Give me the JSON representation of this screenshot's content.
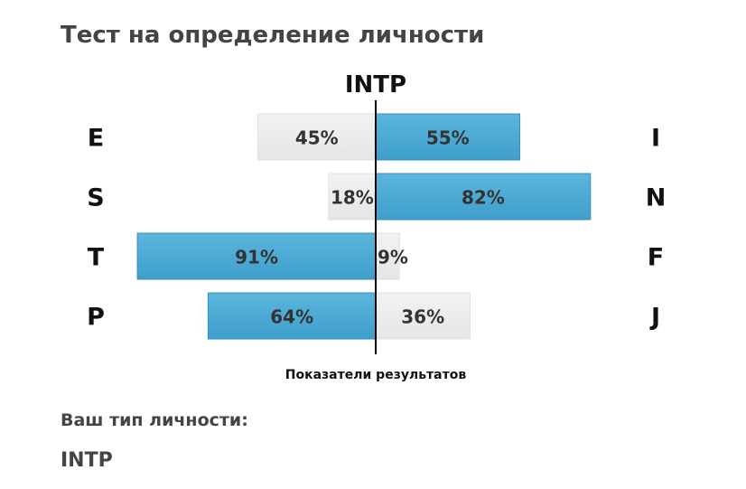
{
  "page": {
    "title": "Тест на определение личности",
    "result_label": "Ваш тип личности:",
    "result_value": "INTP"
  },
  "chart_data": {
    "type": "bar",
    "orientation": "diverging-horizontal",
    "title": "INTP",
    "xlabel": "Показатели результатов",
    "xlim": [
      -100,
      100
    ],
    "rows": [
      {
        "left_label": "E",
        "right_label": "I",
        "left_value": 45,
        "right_value": 55,
        "left_text": "45%",
        "right_text": "55%",
        "dominant": "right"
      },
      {
        "left_label": "S",
        "right_label": "N",
        "left_value": 18,
        "right_value": 82,
        "left_text": "18%",
        "right_text": "82%",
        "dominant": "right"
      },
      {
        "left_label": "T",
        "right_label": "F",
        "left_value": 91,
        "right_value": 9,
        "left_text": "91%",
        "right_text": "9%",
        "dominant": "left"
      },
      {
        "left_label": "P",
        "right_label": "J",
        "left_value": 64,
        "right_value": 36,
        "left_text": "64%",
        "right_text": "36%",
        "dominant": "left"
      }
    ],
    "colors": {
      "dominant": "#4aa8d2",
      "dominant_edge": "#3a8fbb",
      "secondary": "#ededed",
      "secondary_edge": "#e0e0e0",
      "axis": "#000000",
      "text": "#333333"
    }
  }
}
